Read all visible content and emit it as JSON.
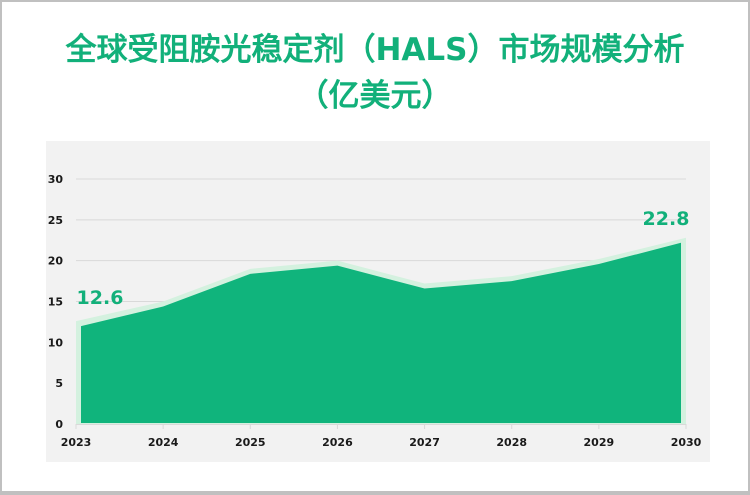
{
  "title": {
    "line1": "全球受阻胺光稳定剂（HALS）市场规模分析",
    "line2": "（亿美元）"
  },
  "colors": {
    "title": "#12b07a",
    "area_fill": "#10b47c",
    "area_outline": "#d4f1df",
    "plot_background": "#f2f2f2",
    "gridline": "#d9d9d9"
  },
  "chart_data": {
    "type": "area",
    "title": "全球受阻胺光稳定剂（HALS）市场规模分析（亿美元）",
    "xlabel": "",
    "ylabel": "",
    "categories": [
      "2023",
      "2024",
      "2025",
      "2026",
      "2027",
      "2028",
      "2029",
      "2030"
    ],
    "series": [
      {
        "name": "市场规模",
        "values": [
          12.6,
          15.0,
          19.0,
          20.0,
          17.2,
          18.1,
          20.2,
          22.8
        ]
      }
    ],
    "data_labels": [
      {
        "category": "2023",
        "text": "12.6"
      },
      {
        "category": "2030",
        "text": "22.8"
      }
    ],
    "ylim": [
      0,
      30
    ],
    "yticks": [
      "0",
      "5",
      "10",
      "15",
      "20",
      "25",
      "30"
    ],
    "grid": true,
    "legend": "none"
  }
}
